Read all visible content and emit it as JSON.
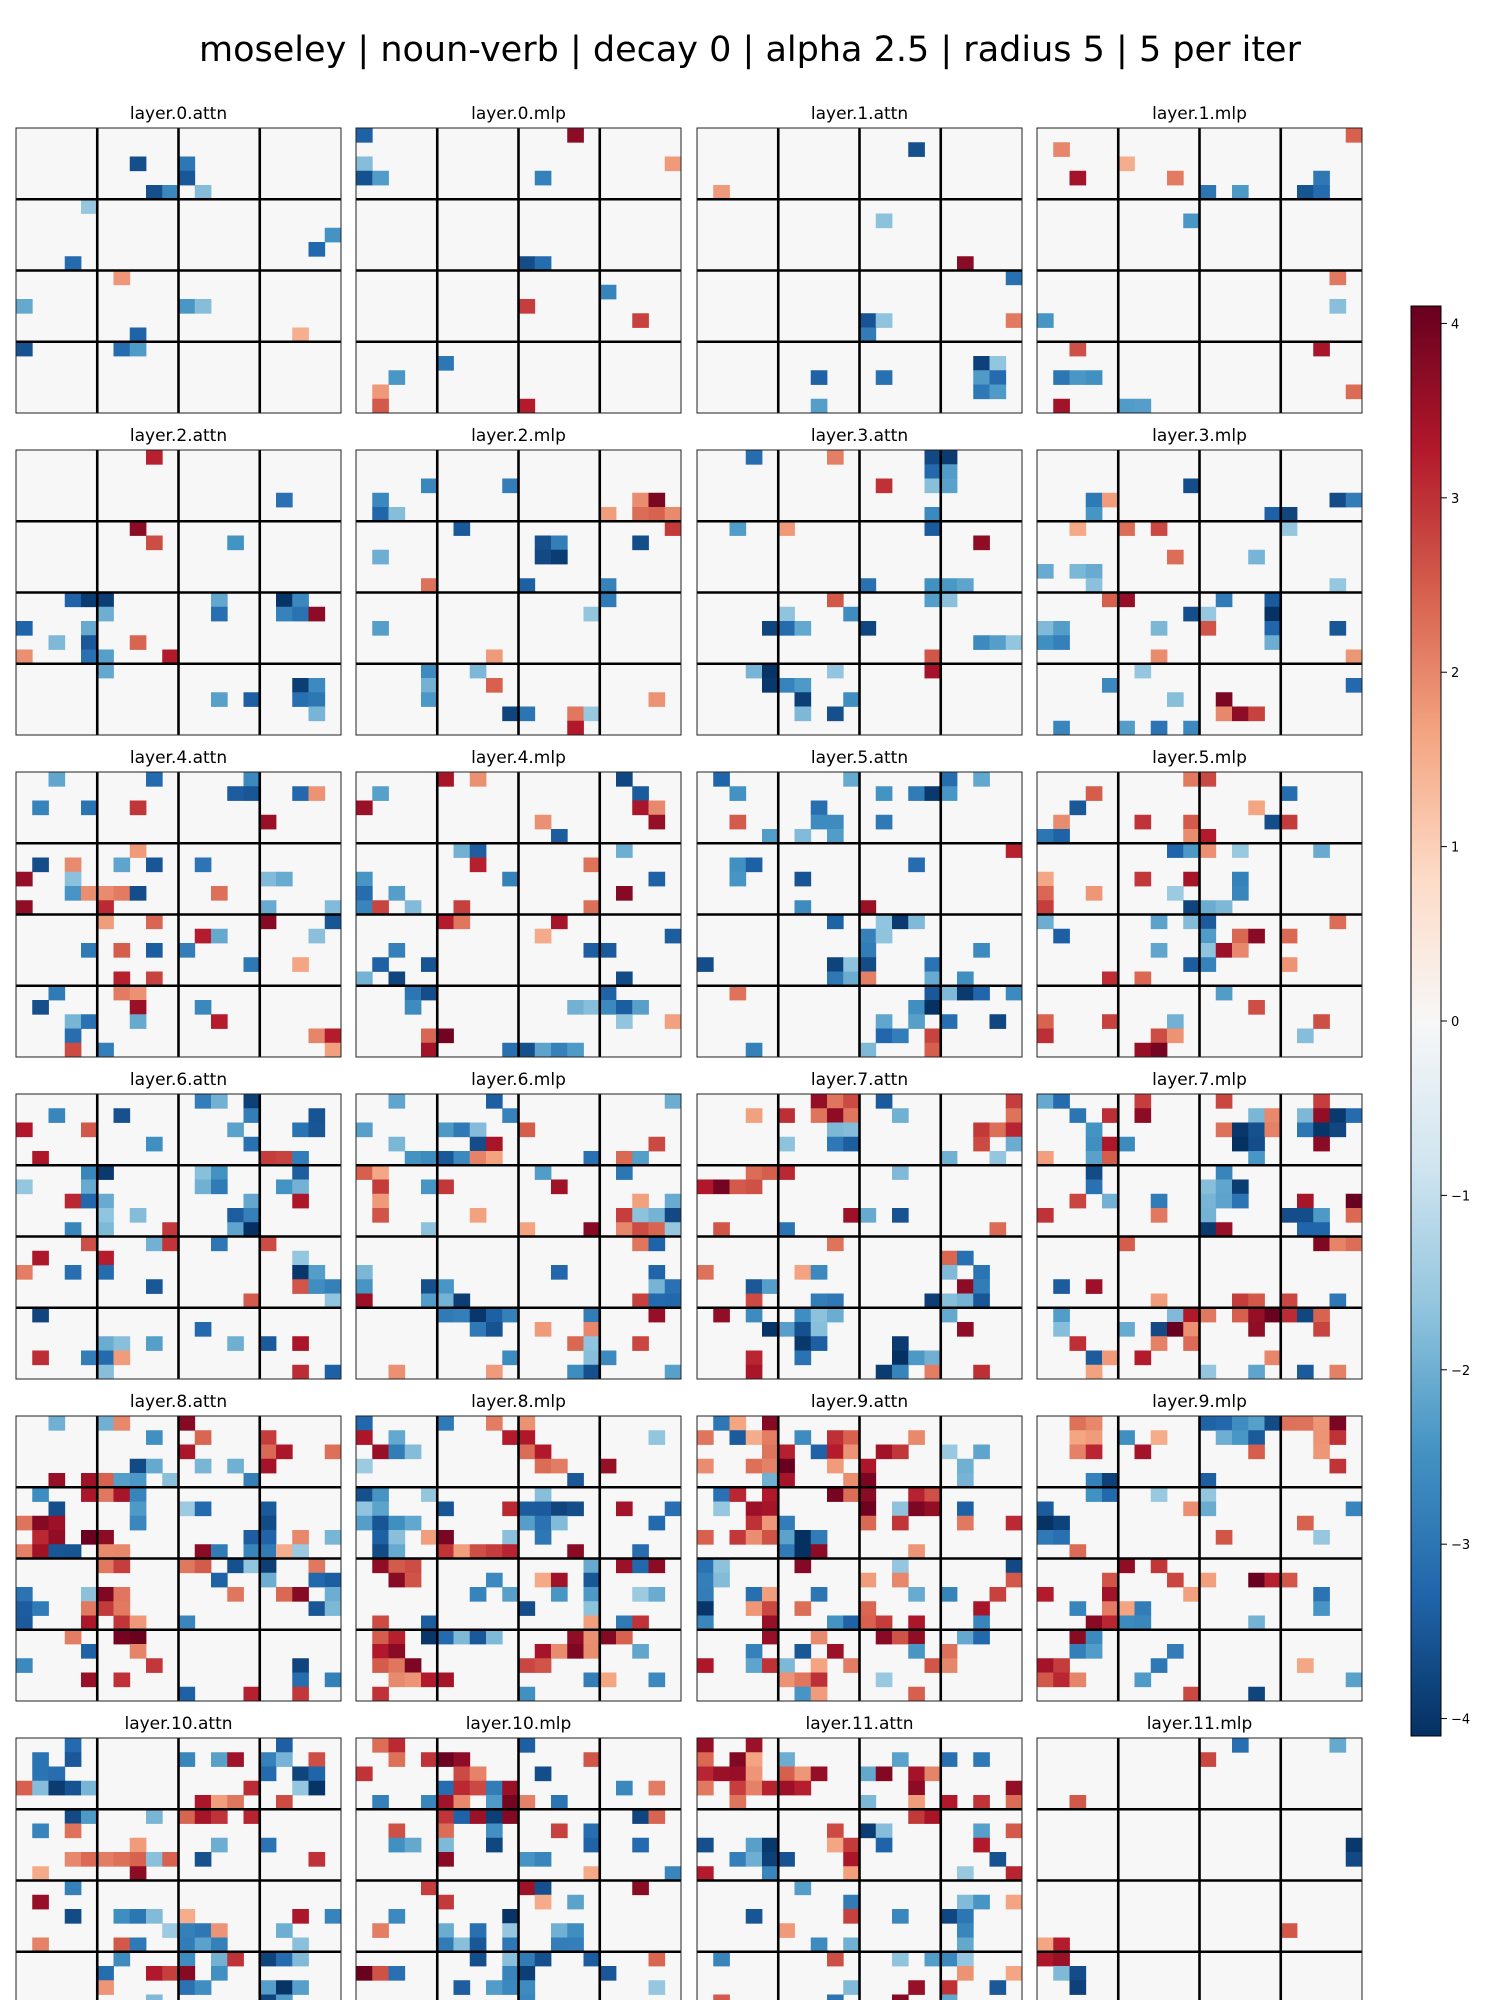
{
  "figure": {
    "title": "moseley | noun-verb | decay 0 | alpha 2.5 | radius 5 | 5 per iter"
  },
  "chart_data": {
    "type": "heatmap",
    "colormap": "RdBu_r",
    "color_range": [
      -4.1,
      4.1
    ],
    "grid_cells": [
      20,
      20
    ],
    "block_lines_every": 5,
    "colorbar": {
      "ticks": [
        4,
        3,
        2,
        1,
        0,
        -1,
        -2,
        -3,
        -4
      ],
      "tick_labels": [
        "4",
        "3",
        "2",
        "1",
        "0",
        "−1",
        "−2",
        "−3",
        "−4"
      ]
    },
    "panels": [
      {
        "title": "layer.0.attn",
        "density": 0.1,
        "red_bias": 0.35
      },
      {
        "title": "layer.0.mlp",
        "density": 0.09,
        "red_bias": 0.45
      },
      {
        "title": "layer.1.attn",
        "density": 0.07,
        "red_bias": 0.3
      },
      {
        "title": "layer.1.mlp",
        "density": 0.13,
        "red_bias": 0.45
      },
      {
        "title": "layer.2.attn",
        "density": 0.12,
        "red_bias": 0.25
      },
      {
        "title": "layer.2.mlp",
        "density": 0.17,
        "red_bias": 0.35
      },
      {
        "title": "layer.3.attn",
        "density": 0.15,
        "red_bias": 0.3
      },
      {
        "title": "layer.3.mlp",
        "density": 0.19,
        "red_bias": 0.35
      },
      {
        "title": "layer.4.attn",
        "density": 0.24,
        "red_bias": 0.4
      },
      {
        "title": "layer.4.mlp",
        "density": 0.27,
        "red_bias": 0.45
      },
      {
        "title": "layer.5.attn",
        "density": 0.23,
        "red_bias": 0.35
      },
      {
        "title": "layer.5.mlp",
        "density": 0.27,
        "red_bias": 0.4
      },
      {
        "title": "layer.6.attn",
        "density": 0.28,
        "red_bias": 0.45
      },
      {
        "title": "layer.6.mlp",
        "density": 0.33,
        "red_bias": 0.45
      },
      {
        "title": "layer.7.attn",
        "density": 0.29,
        "red_bias": 0.45
      },
      {
        "title": "layer.7.mlp",
        "density": 0.37,
        "red_bias": 0.5
      },
      {
        "title": "layer.8.attn",
        "density": 0.4,
        "red_bias": 0.5
      },
      {
        "title": "layer.8.mlp",
        "density": 0.44,
        "red_bias": 0.45
      },
      {
        "title": "layer.9.attn",
        "density": 0.42,
        "red_bias": 0.5
      },
      {
        "title": "layer.9.mlp",
        "density": 0.37,
        "red_bias": 0.5
      },
      {
        "title": "layer.10.attn",
        "density": 0.42,
        "red_bias": 0.45
      },
      {
        "title": "layer.10.mlp",
        "density": 0.36,
        "red_bias": 0.4
      },
      {
        "title": "layer.11.attn",
        "density": 0.33,
        "red_bias": 0.45
      },
      {
        "title": "layer.11.mlp",
        "density": 0.06,
        "red_bias": 0.55
      }
    ]
  }
}
